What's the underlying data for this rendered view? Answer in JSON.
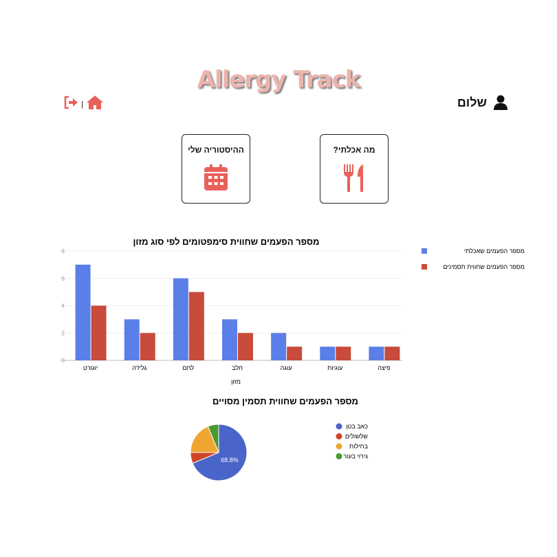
{
  "header": {
    "title": "Allergy Track",
    "greeting": "שלום",
    "icons": [
      "user-icon",
      "logout-icon",
      "home-icon"
    ],
    "separator": "|"
  },
  "cards": [
    {
      "label": "ההיסטוריה שלי",
      "icon": "calendar-icon"
    },
    {
      "label": "מה אכלתי?",
      "icon": "utensils-icon"
    }
  ],
  "colors": {
    "accent": "#e8615b",
    "title": "#ecb4ad",
    "blue": "#5b7fe8",
    "red": "#c84b3c"
  },
  "chart_data": [
    {
      "type": "bar",
      "title": "מספר הפעמים שחווית סימפטומים לפי סוג מזון",
      "xlabel": "מזון",
      "ylabel": "",
      "categories": [
        "יוגורט",
        "גלידה",
        "לחם",
        "חלב",
        "עוגה",
        "עוגיות",
        "פיצה"
      ],
      "ylim": [
        0,
        8
      ],
      "yticks": [
        "0",
        "2",
        "4",
        "6",
        "8"
      ],
      "grid": true,
      "legend": "right",
      "series": [
        {
          "name": "מספר הפעמים שאכלתי",
          "color": "#5b7fe8",
          "values": [
            7,
            3,
            6,
            3,
            2,
            1,
            1
          ]
        },
        {
          "name": "מספר הפעמים שחווית תסמינים",
          "color": "#c84b3c",
          "values": [
            4,
            2,
            5,
            2,
            1,
            1,
            1
          ]
        }
      ]
    },
    {
      "type": "pie",
      "title": "מספר הפעמים שחווית תסמין מסויים",
      "legend": "right",
      "slices": [
        {
          "label": "כאב בטן",
          "value": 68.75,
          "color": "#4a65c9",
          "data_label": "68.8%"
        },
        {
          "label": "שלשולים",
          "value": 6.25,
          "color": "#cf4527"
        },
        {
          "label": "בחילות",
          "value": 18.75,
          "color": "#f0a530"
        },
        {
          "label": "גירוי בעור",
          "value": 6.25,
          "color": "#4b9a2e"
        }
      ]
    }
  ]
}
